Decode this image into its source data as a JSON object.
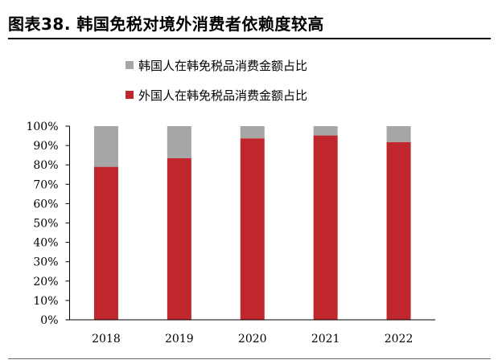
{
  "header": {
    "title": "图表38. 韩国免税对境外消费者依赖度较高"
  },
  "chart_data": {
    "type": "bar",
    "stacked": true,
    "categories": [
      "2018",
      "2019",
      "2020",
      "2021",
      "2022"
    ],
    "series": [
      {
        "name": "外国人在韩免税品消费金额占比",
        "color": "#c0272d",
        "values": [
          79,
          83.5,
          93.7,
          95.2,
          91.8
        ]
      },
      {
        "name": "韩国人在韩免税品消费金额占比",
        "color": "#a6a6a6",
        "values": [
          21,
          16.5,
          6.3,
          4.8,
          8.2
        ]
      }
    ],
    "ylim": [
      0,
      100
    ],
    "yticks": [
      "0%",
      "10%",
      "20%",
      "30%",
      "40%",
      "50%",
      "60%",
      "70%",
      "80%",
      "90%",
      "100%"
    ],
    "legend_order": [
      1,
      0
    ],
    "legend_position": "top",
    "grid": false
  }
}
